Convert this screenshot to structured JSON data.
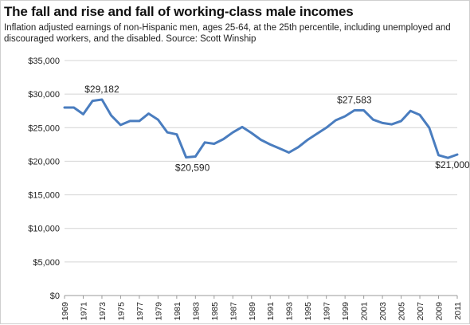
{
  "chart_data": {
    "type": "line",
    "title": "The fall and rise and fall of working-class male incomes",
    "subtitle": "Inflation adjusted earnings of non-Hispanic men, ages 25-64, at the 25th percentile, including unemployed and discouraged workers, and the disabled. Source: Scott Winship",
    "xlabel": "",
    "ylabel": "",
    "ylim": [
      0,
      35000
    ],
    "yticks": [
      0,
      5000,
      10000,
      15000,
      20000,
      25000,
      30000,
      35000
    ],
    "ytick_labels": [
      "$0",
      "$5,000",
      "$10,000",
      "$15,000",
      "$20,000",
      "$25,000",
      "$30,000",
      "$35,000"
    ],
    "xlim": [
      1969,
      2011
    ],
    "xtick_labels": [
      "1969",
      "1971",
      "1973",
      "1975",
      "1977",
      "1979",
      "1981",
      "1983",
      "1985",
      "1987",
      "1989",
      "1991",
      "1993",
      "1995",
      "1997",
      "1999",
      "2001",
      "2003",
      "2005",
      "2007",
      "2009",
      "2011"
    ],
    "grid": "horizontal",
    "line_color": "#4a7dbf",
    "x": [
      1969,
      1970,
      1971,
      1972,
      1973,
      1974,
      1975,
      1976,
      1977,
      1978,
      1979,
      1980,
      1981,
      1982,
      1983,
      1984,
      1985,
      1986,
      1987,
      1988,
      1989,
      1990,
      1991,
      1992,
      1993,
      1994,
      1995,
      1996,
      1997,
      1998,
      1999,
      2000,
      2001,
      2002,
      2003,
      2004,
      2005,
      2006,
      2007,
      2008,
      2009,
      2010,
      2011
    ],
    "values": [
      28000,
      28000,
      27000,
      29000,
      29182,
      26800,
      25400,
      26000,
      26000,
      27100,
      26200,
      24300,
      24000,
      20590,
      20700,
      22800,
      22600,
      23300,
      24300,
      25100,
      24200,
      23200,
      22500,
      21900,
      21300,
      22100,
      23200,
      24100,
      25000,
      26100,
      26700,
      27583,
      27583,
      26200,
      25700,
      25500,
      26000,
      27500,
      26900,
      25000,
      20900,
      20500,
      21000
    ],
    "annotations": [
      {
        "text": "$29,182",
        "x": 1973,
        "y": 29182
      },
      {
        "text": "$20,590",
        "x": 1982,
        "y": 20590
      },
      {
        "text": "$27,583",
        "x": 2000,
        "y": 27583
      },
      {
        "text": "$21,000",
        "x": 2011,
        "y": 21000
      }
    ]
  }
}
